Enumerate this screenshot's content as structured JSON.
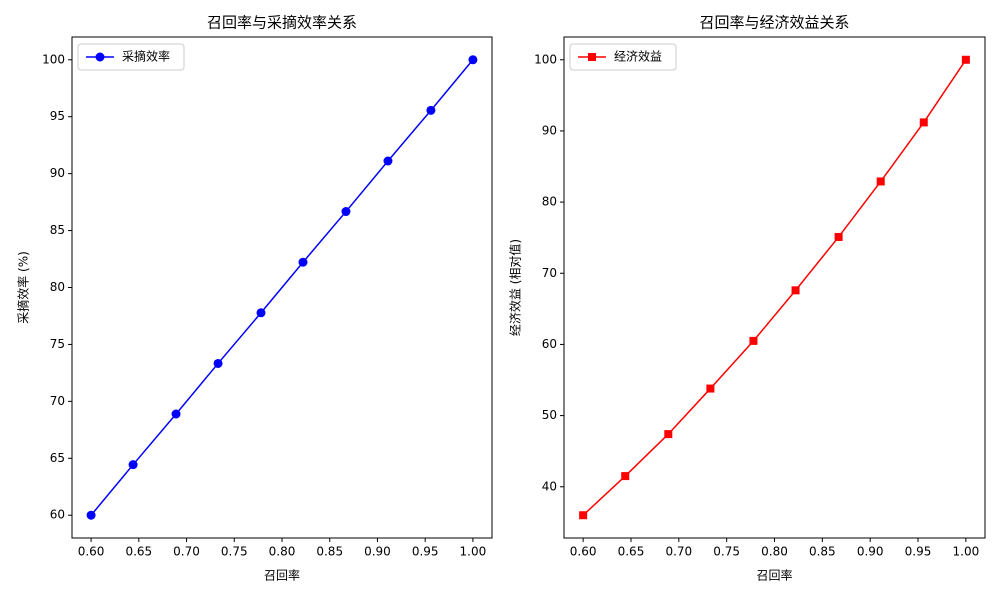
{
  "chart_data": [
    {
      "type": "line",
      "title": "召回率与采摘效率关系",
      "x_label": "召回率",
      "y_label": "采摘效率 (%)",
      "x": [
        0.6,
        0.644,
        0.689,
        0.733,
        0.778,
        0.822,
        0.867,
        0.911,
        0.956,
        1.0
      ],
      "series": [
        {
          "name": "采摘效率",
          "color": "#0000ff",
          "marker": "circle",
          "values": [
            60,
            64.44,
            68.89,
            73.33,
            77.78,
            82.22,
            86.67,
            91.11,
            95.56,
            100
          ]
        }
      ],
      "xlim": [
        0.58,
        1.02
      ],
      "xticks": [
        {
          "value": 0.6,
          "label": "0.60"
        },
        {
          "value": 0.65,
          "label": "0.65"
        },
        {
          "value": 0.7,
          "label": "0.70"
        },
        {
          "value": 0.75,
          "label": "0.75"
        },
        {
          "value": 0.8,
          "label": "0.80"
        },
        {
          "value": 0.85,
          "label": "0.85"
        },
        {
          "value": 0.9,
          "label": "0.90"
        },
        {
          "value": 0.95,
          "label": "0.95"
        },
        {
          "value": 1.0,
          "label": "1.00"
        }
      ],
      "ylim": [
        58,
        102
      ],
      "yticks": [
        60,
        65,
        70,
        75,
        80,
        85,
        90,
        95,
        100
      ],
      "grid": true,
      "legend": "upper-left"
    },
    {
      "type": "line",
      "title": "召回率与经济效益关系",
      "x_label": "召回率",
      "y_label": "经济效益 (相对值)",
      "x": [
        0.6,
        0.644,
        0.689,
        0.733,
        0.778,
        0.822,
        0.867,
        0.911,
        0.956,
        1.0
      ],
      "series": [
        {
          "name": "经济效益",
          "color": "#ff0000",
          "marker": "square",
          "values": [
            36,
            41.5,
            47.4,
            53.8,
            60.5,
            67.6,
            75.1,
            82.9,
            91.2,
            100
          ]
        }
      ],
      "xlim": [
        0.58,
        1.02
      ],
      "xticks": [
        {
          "value": 0.6,
          "label": "0.60"
        },
        {
          "value": 0.65,
          "label": "0.65"
        },
        {
          "value": 0.7,
          "label": "0.70"
        },
        {
          "value": 0.75,
          "label": "0.75"
        },
        {
          "value": 0.8,
          "label": "0.80"
        },
        {
          "value": 0.85,
          "label": "0.85"
        },
        {
          "value": 0.9,
          "label": "0.90"
        },
        {
          "value": 0.95,
          "label": "0.95"
        },
        {
          "value": 1.0,
          "label": "1.00"
        }
      ],
      "ylim": [
        32.8,
        103.2
      ],
      "yticks": [
        40,
        50,
        60,
        70,
        80,
        90,
        100
      ],
      "grid": true,
      "legend": "upper-left"
    }
  ]
}
